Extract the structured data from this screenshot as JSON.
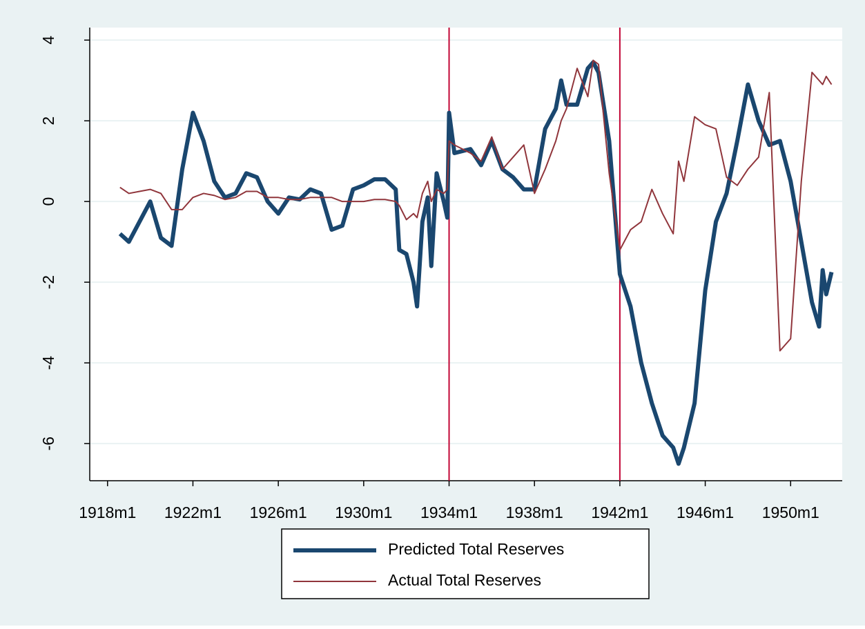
{
  "chart_data": {
    "type": "line",
    "x": [
      -497,
      -492,
      -486,
      -480,
      -474,
      -468,
      -462,
      -456,
      -450,
      -444,
      -438,
      -432,
      -426,
      -420,
      -414,
      -408,
      -402,
      -396,
      -390,
      -384,
      -378,
      -372,
      -366,
      -360,
      -354,
      -348,
      -342,
      -340,
      -336,
      -332,
      -330,
      -327,
      -324,
      -322,
      -319,
      -315,
      -313,
      -312,
      -309,
      -300,
      -294,
      -288,
      -282,
      -276,
      -270,
      -264,
      -258,
      -252,
      -249,
      -246,
      -240,
      -234,
      -231,
      -228,
      -222,
      -216,
      -210,
      -204,
      -198,
      -192,
      -186,
      -183,
      -180,
      -174,
      -168,
      -162,
      -156,
      -150,
      -144,
      -138,
      -132,
      -126,
      -120,
      -114,
      -108,
      -104,
      -102,
      -100,
      -97
    ],
    "series": [
      {
        "name": "Predicted Total Reserves",
        "color": "#1a476f",
        "values": [
          -0.8,
          -1.0,
          -0.5,
          0.0,
          -0.9,
          -1.1,
          0.8,
          2.2,
          1.5,
          0.5,
          0.1,
          0.2,
          0.7,
          0.6,
          0.0,
          -0.3,
          0.1,
          0.05,
          0.3,
          0.2,
          -0.7,
          -0.6,
          0.3,
          0.4,
          0.55,
          0.55,
          0.3,
          -1.2,
          -1.3,
          -2.0,
          -2.6,
          -0.5,
          0.1,
          -1.6,
          0.7,
          0.0,
          -0.4,
          2.2,
          1.2,
          1.3,
          0.9,
          1.5,
          0.8,
          0.6,
          0.3,
          0.3,
          1.8,
          2.3,
          3.0,
          2.4,
          2.4,
          3.3,
          3.45,
          3.2,
          1.5,
          -1.8,
          -2.6,
          -4.0,
          -5.0,
          -5.8,
          -6.1,
          -6.5,
          -6.1,
          -5.0,
          -2.2,
          -0.5,
          0.2,
          1.5,
          2.9,
          2.0,
          1.4,
          1.5,
          0.5,
          -1.0,
          -2.5,
          -3.1,
          -1.7,
          -2.3,
          -1.75
        ]
      },
      {
        "name": "Actual Total Reserves",
        "color": "#90353b",
        "values": [
          0.35,
          0.2,
          0.25,
          0.3,
          0.2,
          -0.2,
          -0.2,
          0.1,
          0.2,
          0.15,
          0.05,
          0.1,
          0.25,
          0.25,
          0.1,
          0.1,
          0.05,
          0.05,
          0.1,
          0.1,
          0.1,
          0.0,
          0.0,
          0.0,
          0.05,
          0.05,
          0.0,
          -0.1,
          -0.45,
          -0.3,
          -0.4,
          0.2,
          0.5,
          0.0,
          0.3,
          0.2,
          0.3,
          1.5,
          1.4,
          1.2,
          1.0,
          1.6,
          0.8,
          1.1,
          1.4,
          0.2,
          0.8,
          1.5,
          2.0,
          2.3,
          3.3,
          2.6,
          3.5,
          3.4,
          0.7,
          -1.2,
          -0.7,
          -0.5,
          0.3,
          -0.3,
          -0.8,
          1.0,
          0.5,
          2.1,
          1.9,
          1.8,
          0.6,
          0.4,
          0.8,
          1.1,
          2.7,
          -3.7,
          -3.4,
          0.5,
          3.2,
          3.0,
          2.9,
          3.1,
          2.9
        ]
      }
    ],
    "xlim": [
      -514,
      -91
    ],
    "xticks": [
      {
        "value": -504,
        "label": "1918m1"
      },
      {
        "value": -456,
        "label": "1922m1"
      },
      {
        "value": -408,
        "label": "1926m1"
      },
      {
        "value": -360,
        "label": "1930m1"
      },
      {
        "value": -312,
        "label": "1934m1"
      },
      {
        "value": -264,
        "label": "1938m1"
      },
      {
        "value": -216,
        "label": "1942m1"
      },
      {
        "value": -168,
        "label": "1946m1"
      },
      {
        "value": -120,
        "label": "1950m1"
      }
    ],
    "ylim": [
      -6.92,
      4.31
    ],
    "yticks": [
      -6,
      -4,
      -2,
      0,
      2,
      4
    ],
    "grid": true,
    "vlines": [
      -312,
      -216
    ],
    "vline_color": "#c10534",
    "legend": "bottom"
  }
}
